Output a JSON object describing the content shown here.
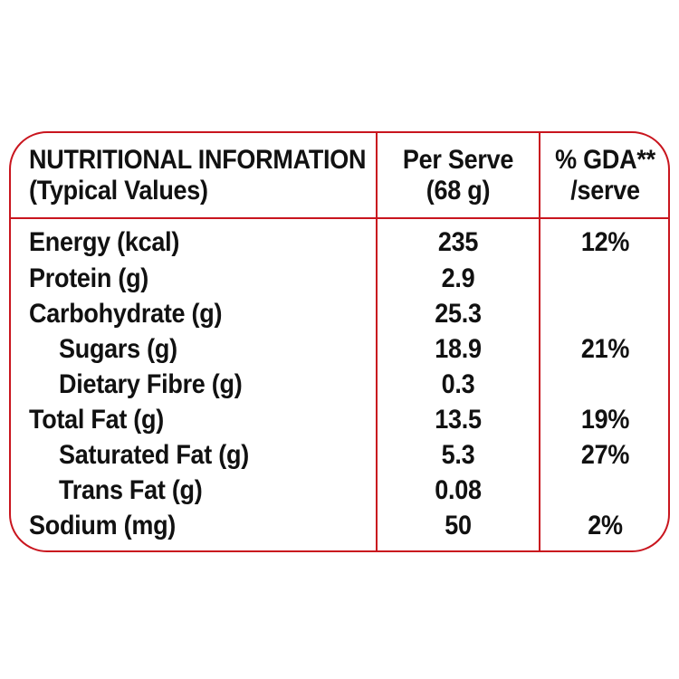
{
  "header": {
    "col1_line1": "NUTRITIONAL INFORMATION",
    "col1_line2": "(Typical Values)",
    "col2_line1": "Per Serve",
    "col2_line2": "(68 g)",
    "col3_line1": "% GDA**",
    "col3_line2": "/serve"
  },
  "rows": [
    {
      "label": "Energy (kcal)",
      "per_serve": "235",
      "gda": "12%"
    },
    {
      "label": "Protein (g)",
      "per_serve": "2.9",
      "gda": ""
    },
    {
      "label": "Carbohydrate (g)",
      "per_serve": "25.3",
      "gda": ""
    },
    {
      "label": "Sugars (g)",
      "per_serve": "18.9",
      "gda": "21%"
    },
    {
      "label": "Dietary Fibre (g)",
      "per_serve": "0.3",
      "gda": ""
    },
    {
      "label": "Total Fat (g)",
      "per_serve": "13.5",
      "gda": "19%"
    },
    {
      "label": "Saturated Fat (g)",
      "per_serve": "5.3",
      "gda": "27%"
    },
    {
      "label": "Trans Fat (g)",
      "per_serve": "0.08",
      "gda": ""
    },
    {
      "label": "Sodium (mg)",
      "per_serve": "50",
      "gda": "2%"
    }
  ],
  "colors": {
    "border": "#c9151e",
    "text": "#111111"
  }
}
